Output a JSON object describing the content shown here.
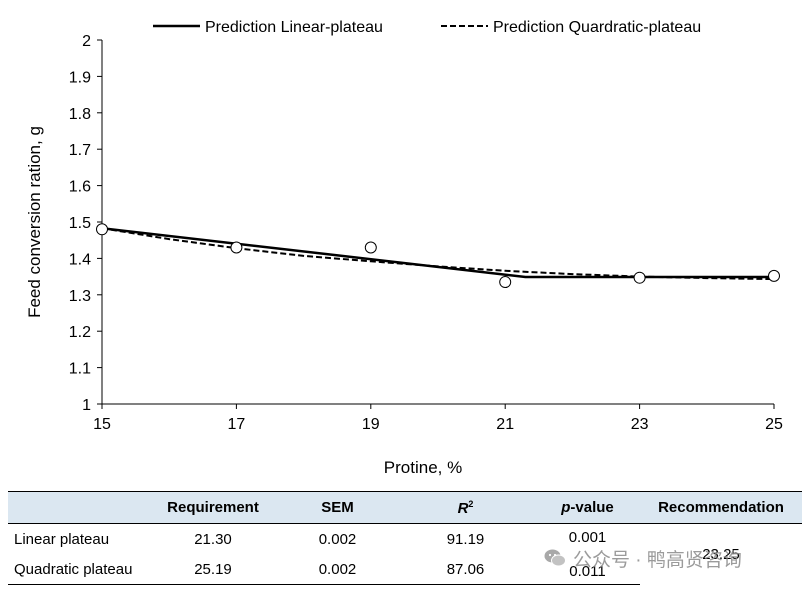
{
  "chart_data": {
    "type": "line",
    "xlabel": "Protine, %",
    "ylabel": "Feed conversion ration, g",
    "xlim": [
      15,
      25
    ],
    "ylim": [
      1,
      2
    ],
    "xticks": [
      15,
      17,
      19,
      21,
      23,
      25
    ],
    "yticks": [
      1,
      1.1,
      1.2,
      1.3,
      1.4,
      1.5,
      1.6,
      1.7,
      1.8,
      1.9,
      2
    ],
    "ytick_labels": [
      "1",
      "1.1",
      "1.2",
      "1.3",
      "1.4",
      "1.5",
      "1.6",
      "1.7",
      "1.8",
      "1.9",
      "2"
    ],
    "grid": false,
    "legend_position": "top",
    "observed": {
      "x": [
        15,
        17,
        19,
        21,
        23,
        25
      ],
      "y": [
        1.48,
        1.43,
        1.43,
        1.335,
        1.347,
        1.352
      ]
    },
    "series": [
      {
        "name": "Prediction Linear-plateau",
        "style": "solid",
        "x": [
          15,
          21.3,
          25
        ],
        "y": [
          1.483,
          1.349,
          1.349
        ]
      },
      {
        "name": "Prediction Quardratic-plateau",
        "style": "dashed",
        "x": [
          15,
          16,
          17,
          18,
          19,
          20,
          21,
          22,
          23,
          24,
          25
        ],
        "y": [
          1.483,
          1.453,
          1.428,
          1.407,
          1.392,
          1.378,
          1.366,
          1.357,
          1.35,
          1.346,
          1.343
        ]
      }
    ],
    "colors": {
      "line": "#000000",
      "marker_fill": "#ffffff"
    }
  },
  "table": {
    "headers": [
      "",
      "Requirement",
      "SEM",
      "R",
      "p-value",
      "Recommendation"
    ],
    "r2_sup": "2",
    "p_italic": "p",
    "p_rest": "-value",
    "rows": [
      {
        "label": "Linear plateau",
        "requirement": "21.30",
        "sem": "0.002",
        "r2": "91.19",
        "pvalue": "0.001"
      },
      {
        "label": "Quadratic plateau",
        "requirement": "25.19",
        "sem": "0.002",
        "r2": "87.06",
        "pvalue": "0.011"
      }
    ],
    "recommendation": "23.25"
  },
  "watermark": {
    "text": "公众号 · 鸭高贤咨询"
  }
}
